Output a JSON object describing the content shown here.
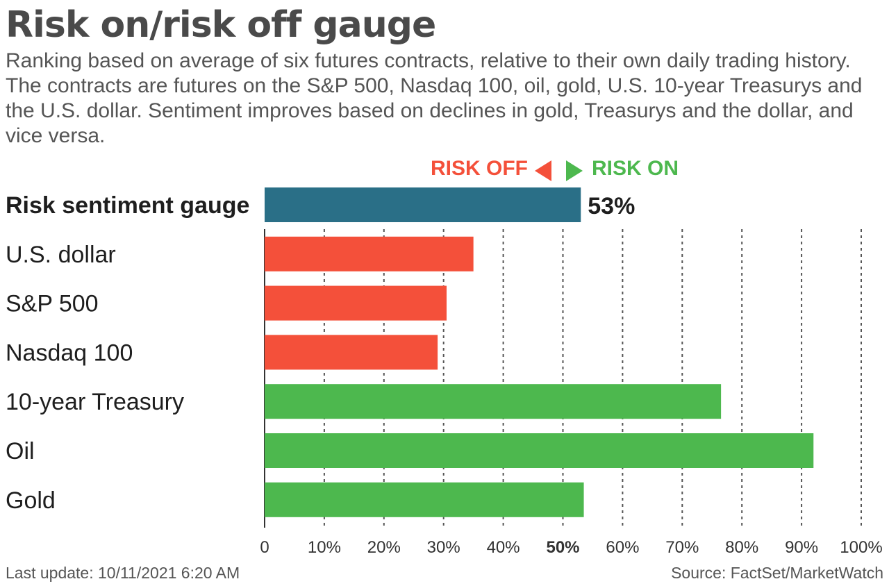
{
  "chart_data": {
    "type": "bar",
    "orientation": "horizontal",
    "title": "Risk on/risk off gauge",
    "subtitle": "Ranking based on average of six futures contracts, relative to their own daily trading history. The contracts are futures on the S&P 500, Nasdaq 100, oil, gold, U.S. 10-year Treasurys and the U.S. dollar. Sentiment improves based on declines in gold, Treasurys and the dollar, and vice versa.",
    "legend": {
      "risk_off_label": "RISK OFF",
      "risk_on_label": "RISK ON",
      "risk_off_color": "#f4503a",
      "risk_on_color": "#4db84e"
    },
    "categories": [
      "Risk sentiment gauge",
      "U.S. dollar",
      "S&P 500",
      "Nasdaq 100",
      "10-year Treasury",
      "Oil",
      "Gold"
    ],
    "values": [
      53,
      35,
      30.5,
      29,
      76.5,
      92,
      53.5
    ],
    "bar_colors": [
      "#2a6f87",
      "#f4503a",
      "#f4503a",
      "#f4503a",
      "#4db84e",
      "#4db84e",
      "#4db84e"
    ],
    "highlight": {
      "category": "Risk sentiment gauge",
      "value_label": "53%"
    },
    "xlim": [
      0,
      100
    ],
    "x_ticks": [
      "0",
      "10%",
      "20%",
      "30%",
      "40%",
      "50%",
      "60%",
      "70%",
      "80%",
      "90%",
      "100%"
    ],
    "gridlines": "dotted vertical",
    "footer_left": "Last update: 10/11/2021 6:20 AM",
    "footer_right": "Source: FactSet/MarketWatch"
  }
}
